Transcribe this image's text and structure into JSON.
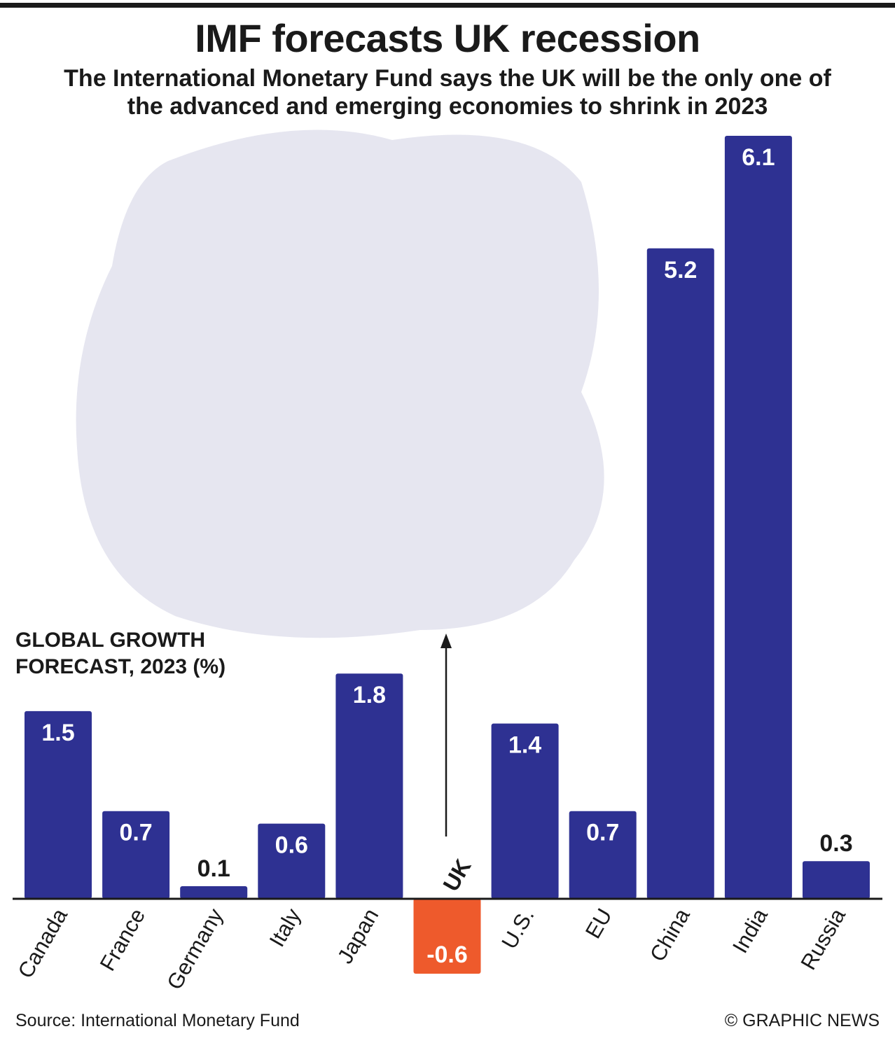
{
  "chart_data": {
    "type": "bar",
    "title": "IMF forecasts UK recession",
    "subtitle": "The International Monetary Fund says the UK will be the only one of the advanced and emerging economies to shrink in 2023",
    "y_label": "GLOBAL GROWTH FORECAST, 2023 (%)",
    "categories": [
      "Canada",
      "France",
      "Germany",
      "Italy",
      "Japan",
      "UK",
      "U.S.",
      "EU",
      "China",
      "India",
      "Russia"
    ],
    "values": [
      1.5,
      0.7,
      0.1,
      0.6,
      1.8,
      -0.6,
      1.4,
      0.7,
      5.2,
      6.1,
      0.3
    ],
    "colors": [
      "#2e3192",
      "#2e3192",
      "#2e3192",
      "#2e3192",
      "#2e3192",
      "#ee5a2c",
      "#2e3192",
      "#2e3192",
      "#2e3192",
      "#2e3192",
      "#2e3192"
    ],
    "ylim": [
      -0.6,
      6.1
    ],
    "source": "Source: International Monetary Fund",
    "credit": "© GRAPHIC NEWS"
  }
}
